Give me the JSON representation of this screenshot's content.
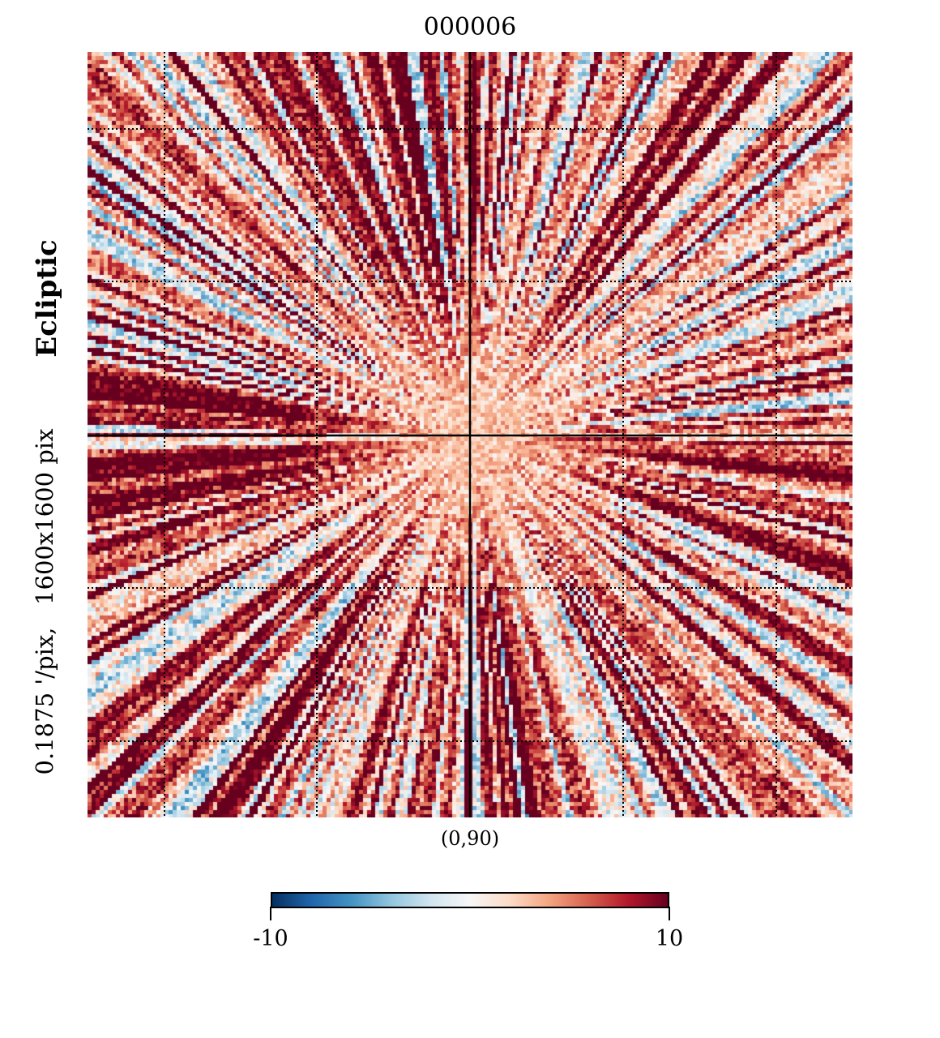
{
  "chart_data": {
    "type": "heatmap",
    "title": "000006",
    "projection_center_label": "(0,90)",
    "coord_system_label": "Ecliptic",
    "resolution_label": "0.1875 '/pix,   1600x1600 pix",
    "colormap": "RdBu_r",
    "colorbar": {
      "vmin": -10,
      "vmax": 10,
      "tick_labels": [
        "-10",
        "10"
      ]
    },
    "graticule": true,
    "colors": [
      "#053061",
      "#2166ac",
      "#4393c3",
      "#92c5de",
      "#d1e5f0",
      "#f7f7f7",
      "#fddbc7",
      "#f4a582",
      "#d6604d",
      "#b2182b",
      "#67001f"
    ]
  }
}
